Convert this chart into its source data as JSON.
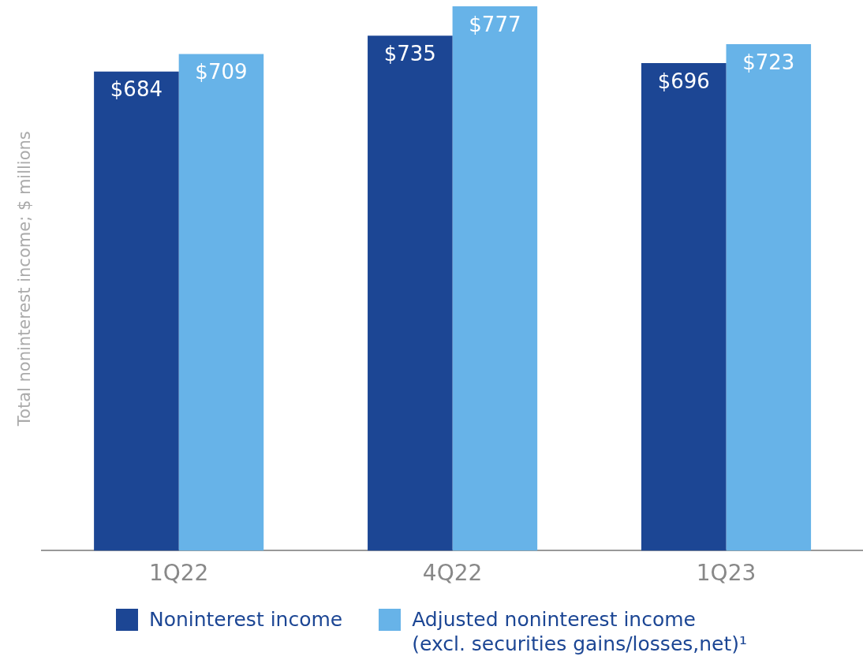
{
  "chart_data": {
    "type": "bar",
    "ylabel": "Total noninterest income; $ millions",
    "categories": [
      "1Q22",
      "4Q22",
      "1Q23"
    ],
    "series": [
      {
        "name": "Noninterest income",
        "color": "#1c4694",
        "values": [
          684,
          735,
          696
        ],
        "value_labels": [
          "$684",
          "$735",
          "$696"
        ]
      },
      {
        "name": "Adjusted noninterest income\n(excl. securities gains/losses,net)¹",
        "color": "#67b3e8",
        "values": [
          709,
          777,
          723
        ],
        "value_labels": [
          "$709",
          "$777",
          "$723"
        ]
      }
    ],
    "legend": "bottom",
    "grid": false
  }
}
